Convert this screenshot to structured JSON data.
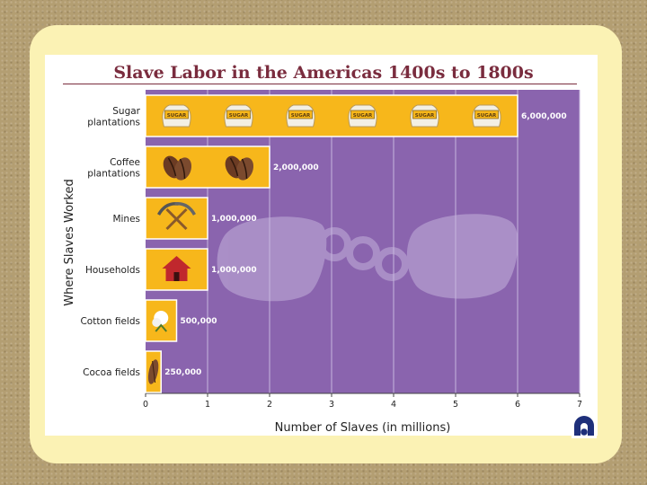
{
  "slide": {
    "background_color": "#b39e72",
    "panel_color": "#fbf2b4",
    "logo_icon": "publisher-logo-icon"
  },
  "chart_data": {
    "type": "bar",
    "orientation": "horizontal",
    "title": "Slave Labor in the Americas 1400s to 1800s",
    "xlabel": "Number of Slaves (in millions)",
    "ylabel": "Where Slaves Worked",
    "categories": [
      [
        "Sugar",
        "plantations"
      ],
      [
        "Coffee",
        "plantations"
      ],
      [
        "Mines"
      ],
      [
        "Households"
      ],
      [
        "Cotton fields"
      ],
      [
        "Cocoa fields"
      ]
    ],
    "values": [
      6000000,
      2000000,
      1000000,
      1000000,
      500000,
      250000
    ],
    "value_labels": [
      "6,000,000",
      "2,000,000",
      "1,000,000",
      "1,000,000",
      "500,000",
      "250,000"
    ],
    "icons": [
      "sugar-sack-icon",
      "coffee-bean-icon",
      "pickaxe-icon",
      "house-icon",
      "cotton-boll-icon",
      "cocoa-pod-icon"
    ],
    "icon_text": "SUGAR",
    "xlim": [
      0,
      7
    ],
    "xticks": [
      "0",
      "1",
      "2",
      "3",
      "4",
      "5",
      "6",
      "7"
    ],
    "grid": true,
    "colors": {
      "plot_bg": "#8a64ae",
      "grid": "#c7b6dd",
      "bar": "#f7b71b",
      "bar_border": "#ffffff",
      "title": "#7a2c3e"
    }
  }
}
